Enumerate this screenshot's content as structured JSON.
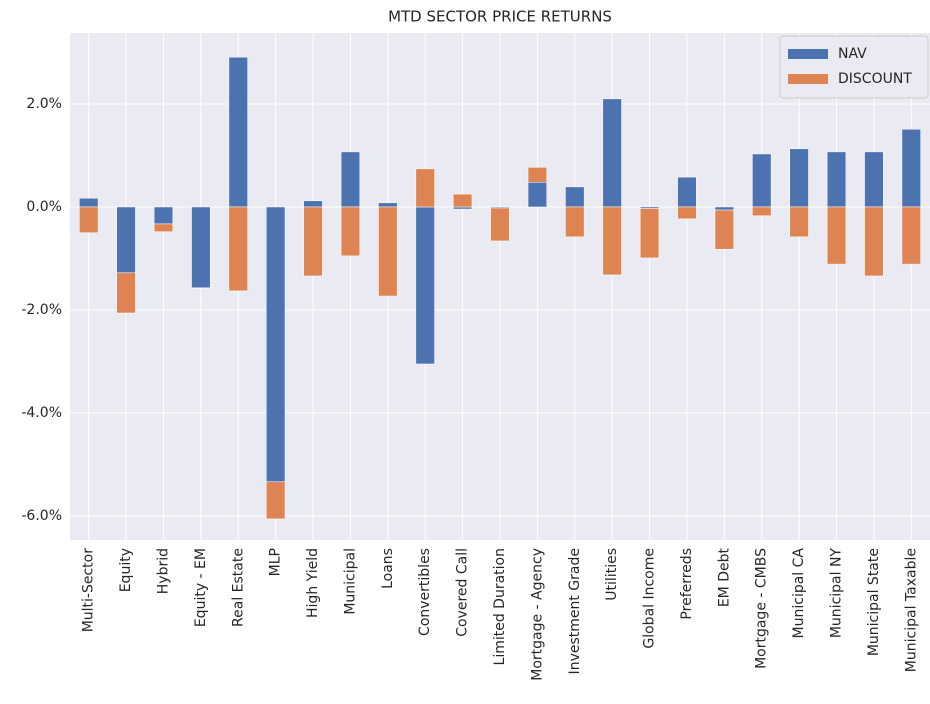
{
  "chart_data": {
    "type": "stacked-bar",
    "title": "MTD SECTOR PRICE RETURNS",
    "categories": [
      "Multi-Sector",
      "Equity",
      "Hybrid",
      "Equity - EM",
      "Real Estate",
      "MLP",
      "High Yield",
      "Municipal",
      "Loans",
      "Convertibles",
      "Covered Call",
      "Limited Duration",
      "Mortgage - Agency",
      "Investment Grade",
      "Utilities",
      "Global Income",
      "Preferreds",
      "EM Debt",
      "Mortgage - CMBS",
      "Municipal CA",
      "Municipal NY",
      "Municipal State",
      "Municipal Taxable"
    ],
    "series": [
      {
        "name": "NAV",
        "color": "#4c72b0",
        "values": [
          0.17,
          -1.28,
          -0.33,
          -1.57,
          2.91,
          -5.34,
          0.12,
          1.07,
          0.08,
          -3.05,
          -0.04,
          -0.02,
          0.48,
          0.39,
          2.1,
          -0.03,
          0.58,
          -0.06,
          1.03,
          1.13,
          1.07,
          1.07,
          1.51
        ]
      },
      {
        "name": "DISCOUNT",
        "color": "#dd8452",
        "values": [
          -0.5,
          -0.78,
          -0.15,
          -0.01,
          -1.63,
          -0.72,
          -1.34,
          -0.95,
          -1.73,
          0.74,
          0.25,
          -0.64,
          0.29,
          -0.58,
          -1.32,
          -0.96,
          -0.23,
          -0.76,
          -0.17,
          -0.58,
          -1.11,
          -1.34,
          -1.11
        ]
      }
    ],
    "ylim": [
      -6.47,
      3.38
    ],
    "yticks": [
      {
        "value": -6,
        "label": "-6.0%"
      },
      {
        "value": -4,
        "label": "-4.0%"
      },
      {
        "value": -2,
        "label": "-2.0%"
      },
      {
        "value": 0,
        "label": "0.0%"
      },
      {
        "value": 2,
        "label": "2.0%"
      }
    ],
    "grid": true,
    "legend": "upper right"
  }
}
